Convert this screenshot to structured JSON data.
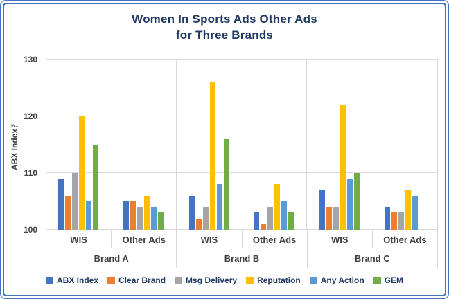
{
  "frame": {
    "border_color": "#4472C4",
    "background": "#FFFFFF"
  },
  "chart_data": {
    "type": "bar",
    "title_line1": "Women In Sports Ads Other Ads",
    "title_line2": "for Three Brands",
    "ylabel": "ABX Index™",
    "ylim": [
      100,
      130
    ],
    "yticks": [
      100,
      110,
      120,
      130
    ],
    "grid": true,
    "legend_position": "bottom",
    "brands": [
      "Brand A",
      "Brand B",
      "Brand C"
    ],
    "subcategories": [
      "WIS",
      "Other Ads"
    ],
    "group_order": [
      "Brand A WIS",
      "Brand A Other Ads",
      "Brand B WIS",
      "Brand B Other Ads",
      "Brand C WIS",
      "Brand C Other Ads"
    ],
    "series": [
      {
        "name": "ABX Index",
        "color": "#4472C4",
        "values": [
          109,
          105,
          106,
          103,
          107,
          104
        ]
      },
      {
        "name": "Clear Brand",
        "color": "#ED7D31",
        "values": [
          106,
          105,
          102,
          101,
          104,
          103
        ]
      },
      {
        "name": "Msg Delivery",
        "color": "#A5A5A5",
        "values": [
          110,
          104,
          104,
          104,
          104,
          103
        ]
      },
      {
        "name": "Reputation",
        "color": "#FFC000",
        "values": [
          120,
          106,
          126,
          108,
          122,
          107
        ]
      },
      {
        "name": "Any Action",
        "color": "#5B9BD5",
        "values": [
          105,
          104,
          108,
          105,
          109,
          106
        ]
      },
      {
        "name": "GEM",
        "color": "#70AD47",
        "values": [
          115,
          103,
          116,
          103,
          110,
          100
        ]
      }
    ]
  }
}
